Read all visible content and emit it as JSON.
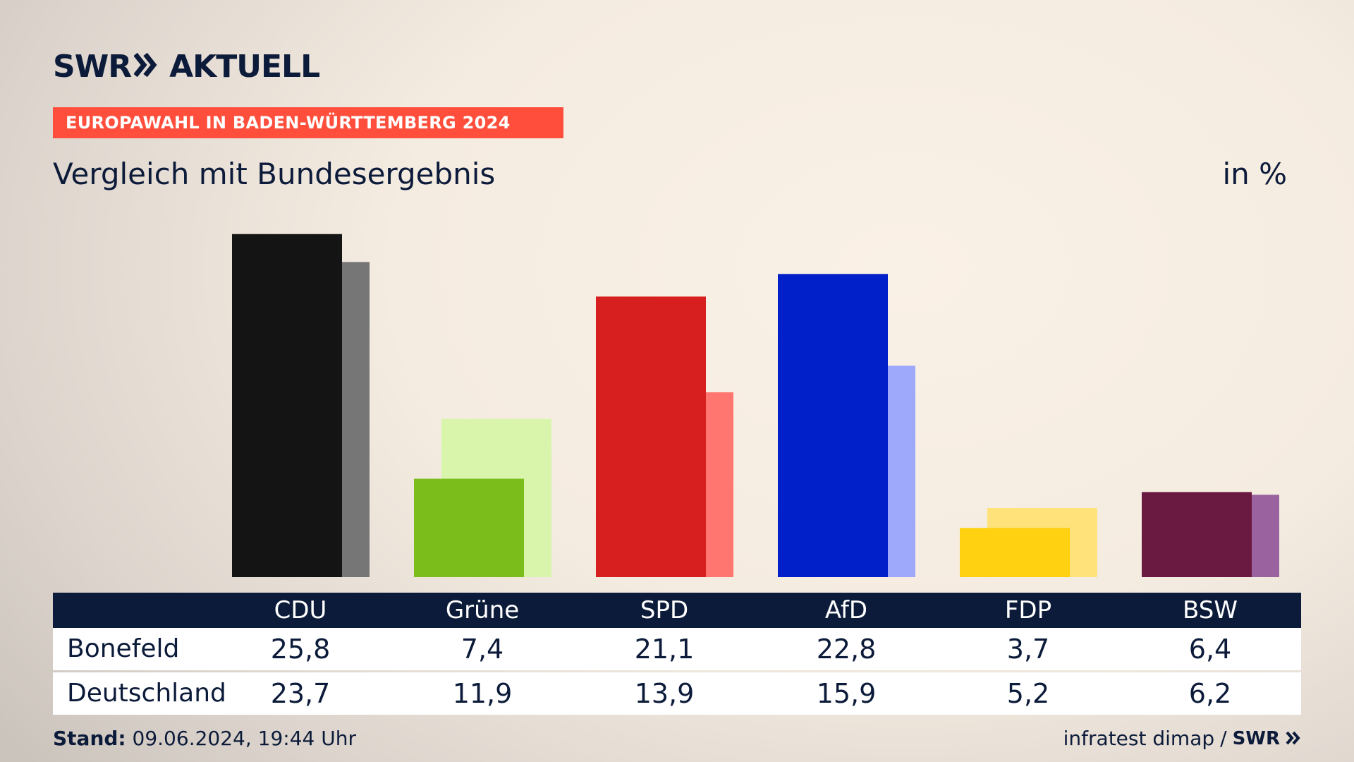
{
  "brand": {
    "logo_left": "SWR",
    "logo_right": "AKTUELL",
    "footer_logo": "SWR"
  },
  "banner": "EUROPAWAHL IN BADEN-WÜRTTEMBERG 2024",
  "subtitle": "Vergleich mit Bundesergebnis",
  "unit": "in %",
  "footer": {
    "stand_label": "Stand:",
    "stand_value": "09.06.2024, 19:44 Uhr",
    "source": "infratest dimap",
    "separator": "/"
  },
  "table": {
    "headers": [
      "CDU",
      "Grüne",
      "SPD",
      "AfD",
      "FDP",
      "BSW"
    ],
    "rows": [
      {
        "label": "Bonefeld",
        "values": [
          "25,8",
          "7,4",
          "21,1",
          "22,8",
          "3,7",
          "6,4"
        ]
      },
      {
        "label": "Deutschland",
        "values": [
          "23,7",
          "11,9",
          "13,9",
          "15,9",
          "5,2",
          "6,2"
        ]
      }
    ]
  },
  "chart_data": {
    "type": "bar",
    "categories": [
      "CDU",
      "Grüne",
      "SPD",
      "AfD",
      "FDP",
      "BSW"
    ],
    "series": [
      {
        "name": "Bonefeld",
        "values": [
          25.8,
          7.4,
          21.1,
          22.8,
          3.7,
          6.4
        ],
        "colors": [
          "#141414",
          "#7bbd1b",
          "#d81f1f",
          "#0220c9",
          "#ffd110",
          "#6a1a40"
        ]
      },
      {
        "name": "Deutschland",
        "values": [
          23.7,
          11.9,
          13.9,
          15.9,
          5.2,
          6.2
        ],
        "colors": [
          "#767676",
          "#d8f5ab",
          "#ff7670",
          "#9fa9fc",
          "#ffe27a",
          "#9a63a0"
        ]
      }
    ],
    "ylim": [
      0,
      26
    ],
    "grid": false,
    "legend": "none"
  }
}
